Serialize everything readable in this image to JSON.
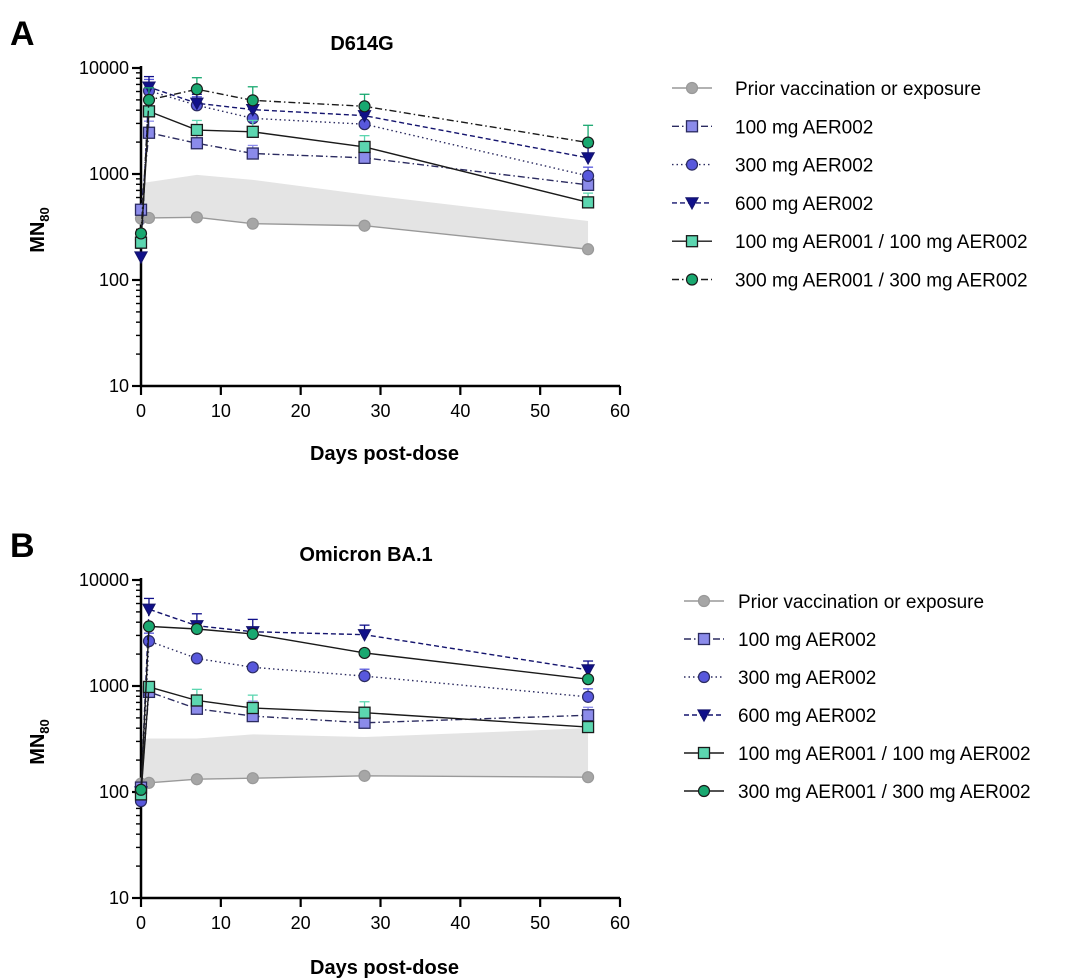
{
  "chart_data": [
    {
      "panel_letter": "A",
      "type": "line",
      "title": "D614G",
      "xlabel": "Days post-dose",
      "ylabel_main": "MN",
      "ylabel_sub": "80",
      "xlim": [
        0,
        60
      ],
      "ylim": [
        10,
        10000
      ],
      "y_scale": "log",
      "x_ticks": [
        0,
        10,
        20,
        30,
        40,
        50,
        60
      ],
      "y_ticks": [
        10,
        100,
        1000,
        10000
      ],
      "y_tick_labels": [
        "10",
        "100",
        "1000",
        "10000"
      ],
      "legend_position": "right",
      "shaded_band": {
        "x": [
          0,
          1,
          7,
          14,
          28,
          56
        ],
        "lower": [
          380,
          385,
          390,
          340,
          325,
          195
        ],
        "upper": [
          820,
          840,
          980,
          880,
          640,
          360
        ]
      },
      "series": [
        {
          "name": "Prior vaccination or exposure",
          "marker": "circle",
          "line": "solid",
          "color": "#999999",
          "fill": "#a6a6a6",
          "x": [
            0,
            1,
            7,
            14,
            28,
            56
          ],
          "y": [
            380,
            385,
            390,
            340,
            325,
            195
          ],
          "err": [
            0,
            0,
            0,
            0,
            0,
            0
          ]
        },
        {
          "name": "100 mg AER002",
          "marker": "square",
          "line": "dash-dot",
          "color": "#2b2b60",
          "fill": "#8b8bea",
          "x": [
            0,
            1,
            7,
            14,
            28,
            56
          ],
          "y": [
            460,
            2450,
            1950,
            1560,
            1420,
            790
          ],
          "err": [
            0,
            700,
            450,
            300,
            300,
            150
          ]
        },
        {
          "name": "300 mg AER002",
          "marker": "circle",
          "line": "dotted",
          "color": "#2b2b60",
          "fill": "#5858dc",
          "x": [
            0,
            1,
            7,
            14,
            28,
            56
          ],
          "y": [
            240,
            6100,
            4450,
            3350,
            2950,
            960
          ],
          "err": [
            0,
            1700,
            900,
            700,
            700,
            200
          ]
        },
        {
          "name": "600 mg AER002",
          "marker": "triangle-down",
          "line": "dashed",
          "color": "#14146e",
          "fill": "#10108a",
          "x": [
            0,
            1,
            7,
            14,
            28,
            56
          ],
          "y": [
            165,
            6600,
            4650,
            4050,
            3550,
            1420
          ],
          "err": [
            0,
            1700,
            1000,
            900,
            900,
            400
          ]
        },
        {
          "name": "100 mg AER001 / 100 mg AER002",
          "marker": "square",
          "line": "solid",
          "color": "#1a1a1a",
          "fill": "#5cd6b0",
          "x": [
            0,
            1,
            7,
            14,
            28,
            56
          ],
          "y": [
            225,
            3900,
            2600,
            2500,
            1800,
            540
          ],
          "err": [
            0,
            1000,
            600,
            700,
            500,
            120
          ]
        },
        {
          "name": "300 mg AER001 / 300 mg AER002",
          "marker": "circle",
          "line": "dash-dot",
          "color": "#1a1a1a",
          "fill": "#19a870",
          "x": [
            0,
            1,
            7,
            14,
            28,
            56
          ],
          "y": [
            275,
            5000,
            6300,
            4950,
            4350,
            1980
          ],
          "err": [
            0,
            1500,
            1800,
            1700,
            1300,
            900
          ]
        }
      ]
    },
    {
      "panel_letter": "B",
      "type": "line",
      "title": "Omicron BA.1",
      "xlabel": "Days post-dose",
      "ylabel_main": "MN",
      "ylabel_sub": "80",
      "xlim": [
        0,
        60
      ],
      "ylim": [
        10,
        10000
      ],
      "y_scale": "log",
      "x_ticks": [
        0,
        10,
        20,
        30,
        40,
        50,
        60
      ],
      "y_ticks": [
        10,
        100,
        1000,
        10000
      ],
      "y_tick_labels": [
        "10",
        "100",
        "1000",
        "10000"
      ],
      "legend_position": "right",
      "shaded_band": {
        "x": [
          0,
          1,
          7,
          14,
          28,
          56
        ],
        "lower": [
          120,
          122,
          132,
          135,
          142,
          138
        ],
        "upper": [
          310,
          320,
          320,
          350,
          330,
          400
        ]
      },
      "series": [
        {
          "name": "Prior vaccination or exposure",
          "marker": "circle",
          "line": "solid",
          "color": "#999999",
          "fill": "#a6a6a6",
          "x": [
            0,
            1,
            7,
            14,
            28,
            56
          ],
          "y": [
            120,
            122,
            132,
            135,
            142,
            138
          ],
          "err": [
            0,
            0,
            0,
            0,
            0,
            0
          ]
        },
        {
          "name": "100 mg AER002",
          "marker": "square",
          "line": "dash-dot",
          "color": "#2b2b60",
          "fill": "#8b8bea",
          "x": [
            0,
            1,
            7,
            14,
            28,
            56
          ],
          "y": [
            110,
            880,
            610,
            520,
            450,
            530
          ],
          "err": [
            0,
            200,
            150,
            200,
            150,
            100
          ]
        },
        {
          "name": "300 mg AER002",
          "marker": "circle",
          "line": "dotted",
          "color": "#2b2b60",
          "fill": "#5858dc",
          "x": [
            0,
            1,
            7,
            14,
            28,
            56
          ],
          "y": [
            82,
            2650,
            1820,
            1500,
            1240,
            790
          ],
          "err": [
            0,
            500,
            0,
            0,
            200,
            150
          ]
        },
        {
          "name": "600 mg AER002",
          "marker": "triangle-down",
          "line": "dashed",
          "color": "#14146e",
          "fill": "#10108a",
          "x": [
            0,
            1,
            7,
            14,
            28,
            56
          ],
          "y": [
            100,
            5300,
            3700,
            3250,
            3050,
            1420
          ],
          "err": [
            0,
            1400,
            1100,
            1000,
            700,
            300
          ]
        },
        {
          "name": "100 mg AER001 / 100 mg AER002",
          "marker": "square",
          "line": "solid",
          "color": "#1a1a1a",
          "fill": "#5cd6b0",
          "x": [
            0,
            1,
            7,
            14,
            28,
            56
          ],
          "y": [
            95,
            980,
            730,
            620,
            560,
            410
          ],
          "err": [
            0,
            0,
            200,
            200,
            150,
            0
          ]
        },
        {
          "name": "300 mg AER001 / 300 mg AER002",
          "marker": "circle",
          "line": "solid",
          "color": "#1a1a1a",
          "fill": "#19a870",
          "x": [
            0,
            1,
            7,
            14,
            28,
            56
          ],
          "y": [
            105,
            3650,
            3450,
            3100,
            2050,
            1160
          ],
          "err": [
            0,
            0,
            0,
            0,
            0,
            0
          ]
        }
      ]
    }
  ]
}
